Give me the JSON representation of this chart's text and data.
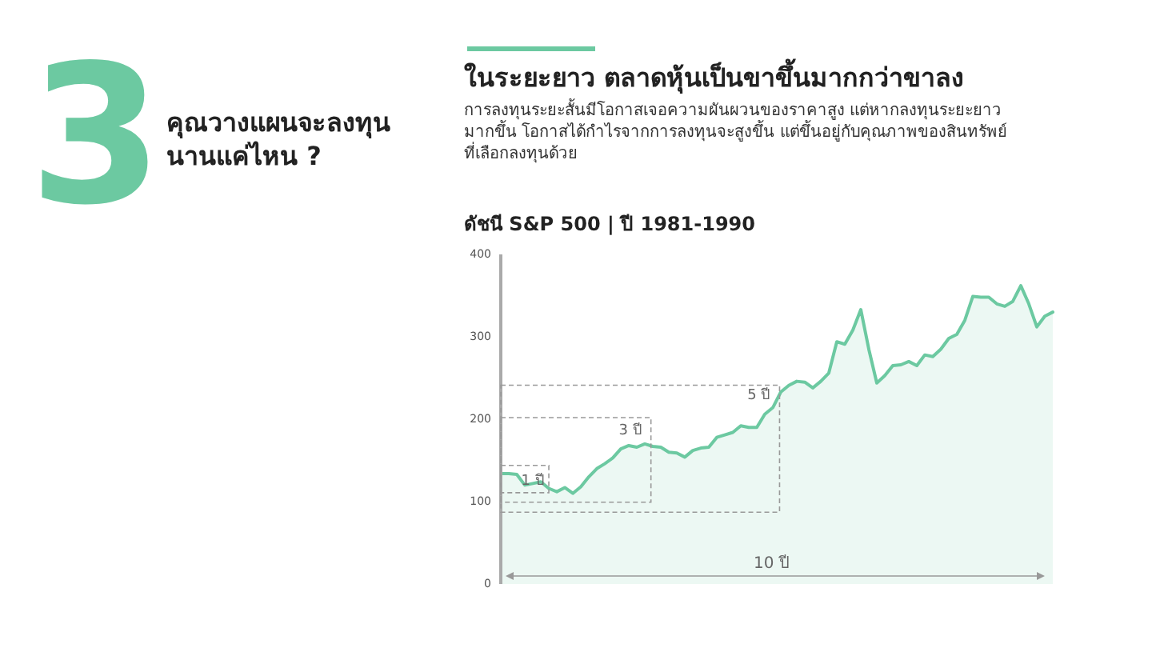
{
  "chart_data": {
    "type": "area",
    "title": "ดัชนี S&P 500 | ปี 1981-1990",
    "subtitle": "การลงทุนระยะสั้นมีโอกาสเจอความผันผวนของราคาสูง แต่หากลงทุนระยะยาว\nมากขึ้น โอกาสได้กำไรจากการลงทุนจะสูงขึ้น แต่ขึ้นอยู่กับคุณภาพของสินทรัพย์\nที่เลือกลงทุนด้วย",
    "annotations": [
      "3",
      "คุณวางแผนจะลงทุน\nนานแค่ไหน ?",
      "ในระยะยาว ตลาดหุ้นเป็นขาขึ้นมากกว่าขาลง",
      "1 ปี",
      "3 ปี",
      "5 ปี",
      "10 ปี"
    ],
    "categories": [
      null,
      null,
      null,
      null,
      null,
      null,
      null,
      null,
      null,
      null,
      null,
      null,
      null,
      null,
      null,
      null,
      null,
      null,
      null,
      null,
      null,
      null,
      null,
      null,
      null,
      null,
      null,
      null,
      null,
      null,
      null,
      null,
      null,
      null,
      null,
      null,
      null,
      null,
      null,
      null,
      null,
      null,
      null,
      null,
      null,
      null,
      null,
      null,
      null,
      null,
      null,
      null,
      null,
      null,
      null,
      null,
      null,
      null,
      null,
      null,
      null,
      null,
      null,
      null,
      null,
      null,
      null,
      null,
      null,
      null
    ],
    "series": [
      {
        "color": "#6cc9a1",
        "values": [
          134,
          134,
          133,
          120,
          122,
          124,
          116,
          112,
          117,
          110,
          118,
          130,
          140,
          146,
          153,
          164,
          168,
          166,
          170,
          167,
          166,
          160,
          159,
          154,
          162,
          165,
          166,
          178,
          181,
          184,
          192,
          190,
          190,
          206,
          214,
          233,
          241,
          246,
          245,
          238,
          246,
          256,
          294,
          291,
          308,
          333,
          285,
          244,
          253,
          265,
          266,
          270,
          265,
          278,
          276,
          285,
          298,
          303,
          320,
          349,
          348,
          348,
          340,
          337,
          343,
          362,
          340,
          312,
          325,
          330
        ]
      }
    ],
    "ylim": [
      0,
      400
    ],
    "yticks": [
      0,
      100,
      200,
      300,
      400
    ],
    "grid": false,
    "tick_labels": "y"
  }
}
